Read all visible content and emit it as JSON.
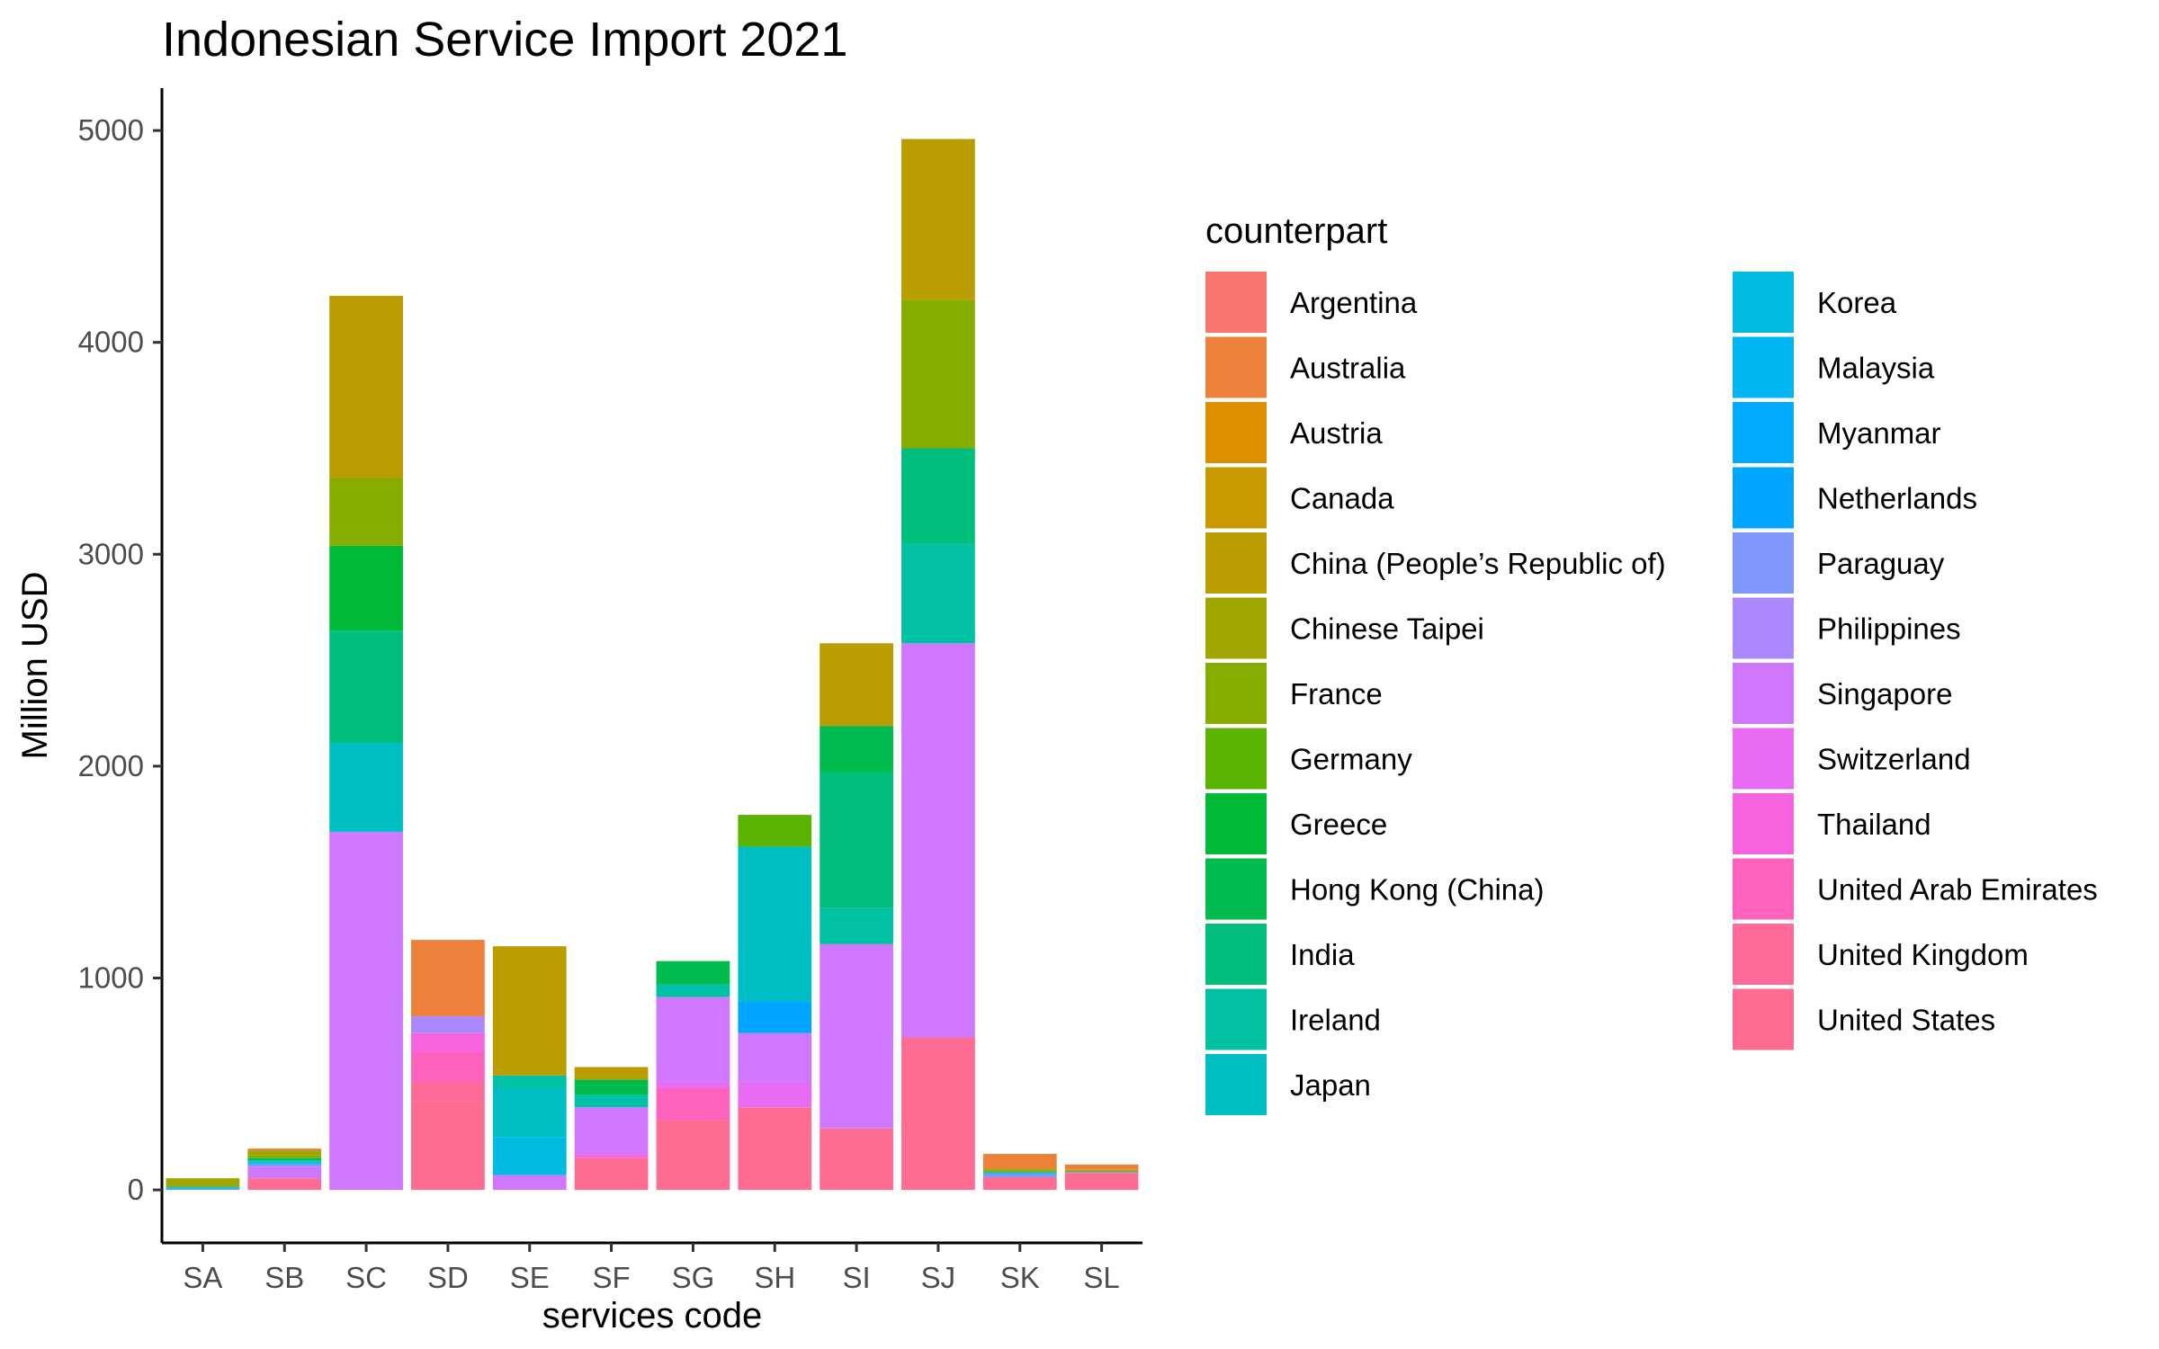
{
  "chart_data": {
    "type": "bar",
    "stacked": true,
    "title": "Indonesian Service Import 2021",
    "xlabel": "services code",
    "ylabel": "Million USD",
    "ylim": [
      -250,
      5200
    ],
    "yticks": [
      0,
      1000,
      2000,
      3000,
      4000,
      5000
    ],
    "grid": false,
    "legend_title": "counterpart",
    "legend_position": "right",
    "categories": [
      "SA",
      "SB",
      "SC",
      "SD",
      "SE",
      "SF",
      "SG",
      "SH",
      "SI",
      "SJ",
      "SK",
      "SL"
    ],
    "series": [
      {
        "name": "Argentina",
        "color": "#F8766D",
        "values": [
          0,
          0,
          0,
          0,
          0,
          0,
          0,
          0,
          0,
          0,
          0,
          0
        ]
      },
      {
        "name": "Australia",
        "color": "#EC8239",
        "values": [
          0,
          10,
          0,
          360,
          0,
          0,
          0,
          0,
          0,
          0,
          70,
          25
        ]
      },
      {
        "name": "Austria",
        "color": "#DB8E00",
        "values": [
          0,
          0,
          0,
          0,
          0,
          0,
          0,
          0,
          0,
          0,
          0,
          0
        ]
      },
      {
        "name": "Canada",
        "color": "#C79800",
        "values": [
          0,
          0,
          0,
          0,
          0,
          0,
          0,
          0,
          0,
          0,
          0,
          0
        ]
      },
      {
        "name": "China (People’s Republic of)",
        "color": "#BA9D00",
        "values": [
          0,
          0,
          860,
          0,
          610,
          60,
          0,
          0,
          390,
          760,
          0,
          0
        ]
      },
      {
        "name": "Chinese Taipei",
        "color": "#9FA600",
        "values": [
          40,
          20,
          0,
          0,
          0,
          0,
          0,
          0,
          0,
          0,
          10,
          5
        ]
      },
      {
        "name": "France",
        "color": "#85AD00",
        "values": [
          0,
          15,
          320,
          0,
          0,
          0,
          0,
          0,
          0,
          700,
          5,
          5
        ]
      },
      {
        "name": "Germany",
        "color": "#5BB300",
        "values": [
          0,
          0,
          0,
          0,
          0,
          0,
          0,
          150,
          0,
          0,
          0,
          0
        ]
      },
      {
        "name": "Greece",
        "color": "#00BA38",
        "values": [
          0,
          0,
          400,
          0,
          0,
          0,
          0,
          0,
          0,
          0,
          0,
          0
        ]
      },
      {
        "name": "Hong Kong (China)",
        "color": "#00BB4E",
        "values": [
          0,
          10,
          0,
          0,
          0,
          70,
          110,
          0,
          220,
          0,
          0,
          0
        ]
      },
      {
        "name": "India",
        "color": "#00BF7D",
        "values": [
          0,
          0,
          530,
          0,
          0,
          0,
          0,
          0,
          640,
          450,
          0,
          0
        ]
      },
      {
        "name": "Ireland",
        "color": "#00C1A3",
        "values": [
          0,
          5,
          0,
          0,
          60,
          60,
          60,
          0,
          170,
          470,
          0,
          0
        ]
      },
      {
        "name": "Japan",
        "color": "#00BFC4",
        "values": [
          0,
          5,
          420,
          0,
          230,
          0,
          0,
          730,
          0,
          0,
          5,
          0
        ]
      },
      {
        "name": "Korea",
        "color": "#00BAE0",
        "values": [
          5,
          5,
          0,
          0,
          180,
          0,
          0,
          0,
          0,
          0,
          0,
          0
        ]
      },
      {
        "name": "Malaysia",
        "color": "#00B4EF",
        "values": [
          5,
          5,
          0,
          0,
          0,
          0,
          0,
          0,
          0,
          0,
          5,
          0
        ]
      },
      {
        "name": "Myanmar",
        "color": "#00ABFD",
        "values": [
          0,
          0,
          0,
          0,
          0,
          0,
          0,
          0,
          0,
          0,
          0,
          0
        ]
      },
      {
        "name": "Netherlands",
        "color": "#00A5FF",
        "values": [
          0,
          0,
          0,
          0,
          0,
          0,
          0,
          150,
          0,
          0,
          0,
          0
        ]
      },
      {
        "name": "Paraguay",
        "color": "#7F96FF",
        "values": [
          5,
          5,
          0,
          0,
          0,
          0,
          0,
          0,
          0,
          0,
          15,
          5
        ]
      },
      {
        "name": "Philippines",
        "color": "#AC88FF",
        "values": [
          0,
          5,
          0,
          80,
          0,
          0,
          0,
          0,
          0,
          0,
          0,
          0
        ]
      },
      {
        "name": "Singapore",
        "color": "#CF78FF",
        "values": [
          0,
          55,
          1690,
          0,
          70,
          220,
          400,
          230,
          870,
          1860,
          0,
          0
        ]
      },
      {
        "name": "Switzerland",
        "color": "#E76BF3",
        "values": [
          0,
          0,
          0,
          0,
          0,
          0,
          30,
          120,
          0,
          0,
          0,
          0
        ]
      },
      {
        "name": "Thailand",
        "color": "#F863DF",
        "values": [
          0,
          0,
          0,
          90,
          0,
          20,
          0,
          0,
          0,
          0,
          0,
          0
        ]
      },
      {
        "name": "United Arab Emirates",
        "color": "#FF62BC",
        "values": [
          0,
          0,
          0,
          140,
          0,
          0,
          150,
          0,
          0,
          0,
          0,
          0
        ]
      },
      {
        "name": "United Kingdom",
        "color": "#FF6A98",
        "values": [
          0,
          0,
          0,
          90,
          0,
          0,
          0,
          0,
          0,
          0,
          0,
          0
        ]
      },
      {
        "name": "United States",
        "color": "#FF6C91",
        "values": [
          0,
          55,
          0,
          420,
          0,
          150,
          330,
          390,
          290,
          720,
          60,
          80
        ]
      }
    ]
  }
}
